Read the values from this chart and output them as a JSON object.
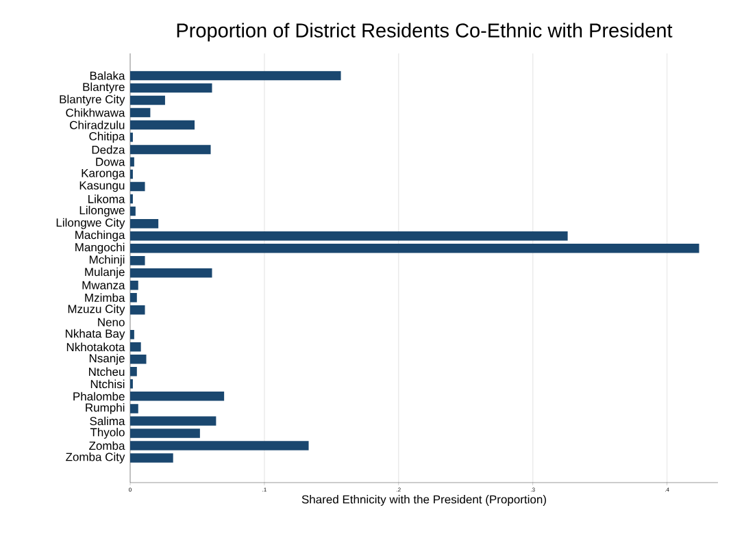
{
  "chart_data": {
    "type": "bar",
    "orientation": "horizontal",
    "title": "Proportion of District Residents Co-Ethnic with President",
    "xlabel": "Shared Ethnicity with the President (Proportion)",
    "categories": [
      "Balaka",
      "Blantyre",
      "Blantyre City",
      "Chikhwawa",
      "Chiradzulu",
      "Chitipa",
      "Dedza",
      "Dowa",
      "Karonga",
      "Kasungu",
      "Likoma",
      "Lilongwe",
      "Lilongwe City",
      "Machinga",
      "Mangochi",
      "Mchinji",
      "Mulanje",
      "Mwanza",
      "Mzimba",
      "Mzuzu City",
      "Neno",
      "Nkhata Bay",
      "Nkhotakota",
      "Nsanje",
      "Ntcheu",
      "Ntchisi",
      "Phalombe",
      "Rumphi",
      "Salima",
      "Thyolo",
      "Zomba",
      "Zomba City"
    ],
    "values": [
      0.157,
      0.061,
      0.026,
      0.015,
      0.048,
      0.002,
      0.06,
      0.003,
      0.002,
      0.011,
      0.002,
      0.004,
      0.021,
      0.326,
      0.424,
      0.011,
      0.061,
      0.006,
      0.005,
      0.011,
      0,
      0.003,
      0.008,
      0.012,
      0.005,
      0.002,
      0.07,
      0.006,
      0.064,
      0.052,
      0.133,
      0.032
    ],
    "color": "#1a476f",
    "xlim": [
      0,
      0.438
    ],
    "xticks": [
      {
        "value": 0,
        "label": "0"
      },
      {
        "value": 0.1,
        "label": ".1"
      },
      {
        "value": 0.2,
        "label": ".2"
      },
      {
        "value": 0.3,
        "label": ".3"
      },
      {
        "value": 0.4,
        "label": ".4"
      }
    ],
    "grid": "x"
  }
}
